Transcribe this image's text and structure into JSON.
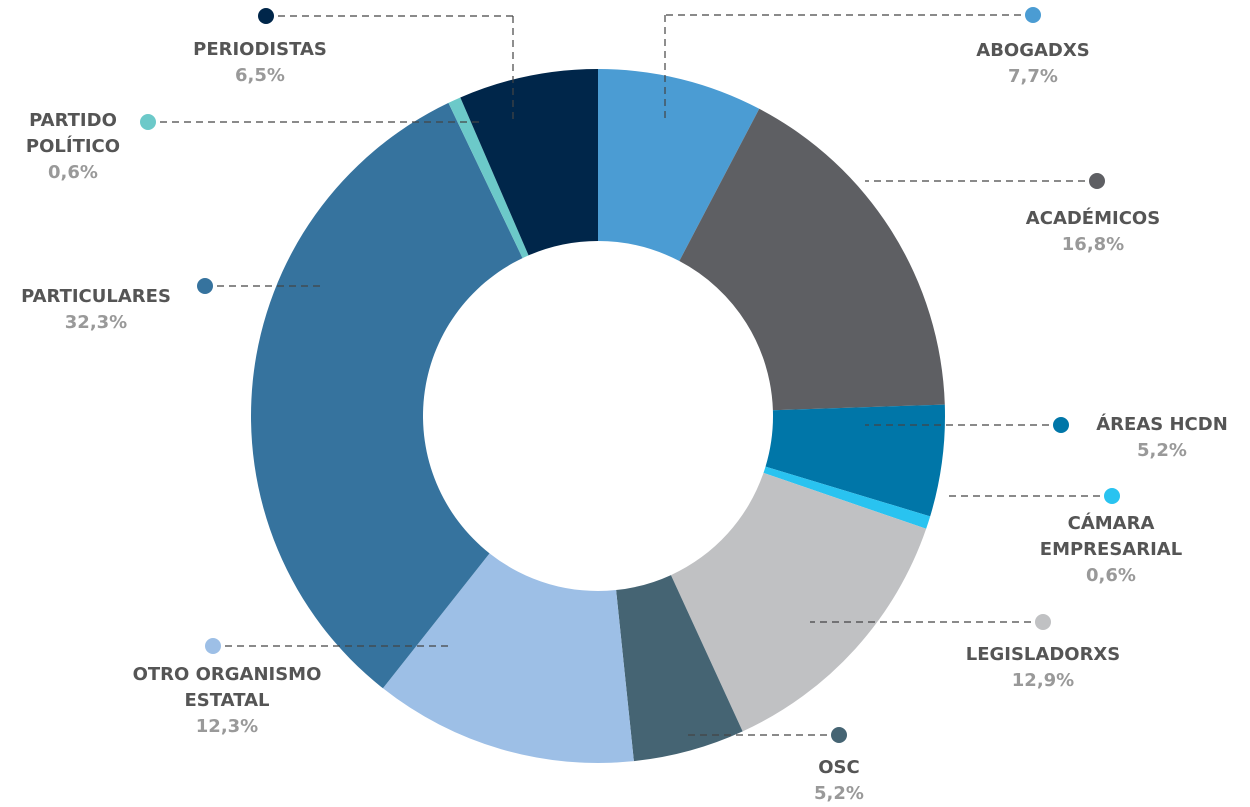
{
  "chart_data": {
    "type": "donut",
    "categories": [
      "ABOGADXS",
      "ACADÉMICOS",
      "ÁREAS HCDN",
      "CÁMARA EMPRESARIAL",
      "LEGISLADORXS",
      "OSC",
      "OTRO ORGANISMO ESTATAL",
      "PARTICULARES",
      "PARTIDO POLÍTICO",
      "PERIODISTAS"
    ],
    "values": [
      7.7,
      16.8,
      5.2,
      0.6,
      12.9,
      5.2,
      12.3,
      32.3,
      0.6,
      6.5
    ],
    "value_labels": [
      "7,7%",
      "16,8%",
      "5,2%",
      "0,6%",
      "12,9%",
      "5,2%",
      "12,3%",
      "32,3%",
      "0,6%",
      "6,5%"
    ],
    "colors": [
      "#4b9cd3",
      "#5e5f63",
      "#0076a8",
      "#29c3f0",
      "#c0c1c3",
      "#456473",
      "#9dbfe6",
      "#36739e",
      "#6cc9c9",
      "#00264a"
    ]
  }
}
